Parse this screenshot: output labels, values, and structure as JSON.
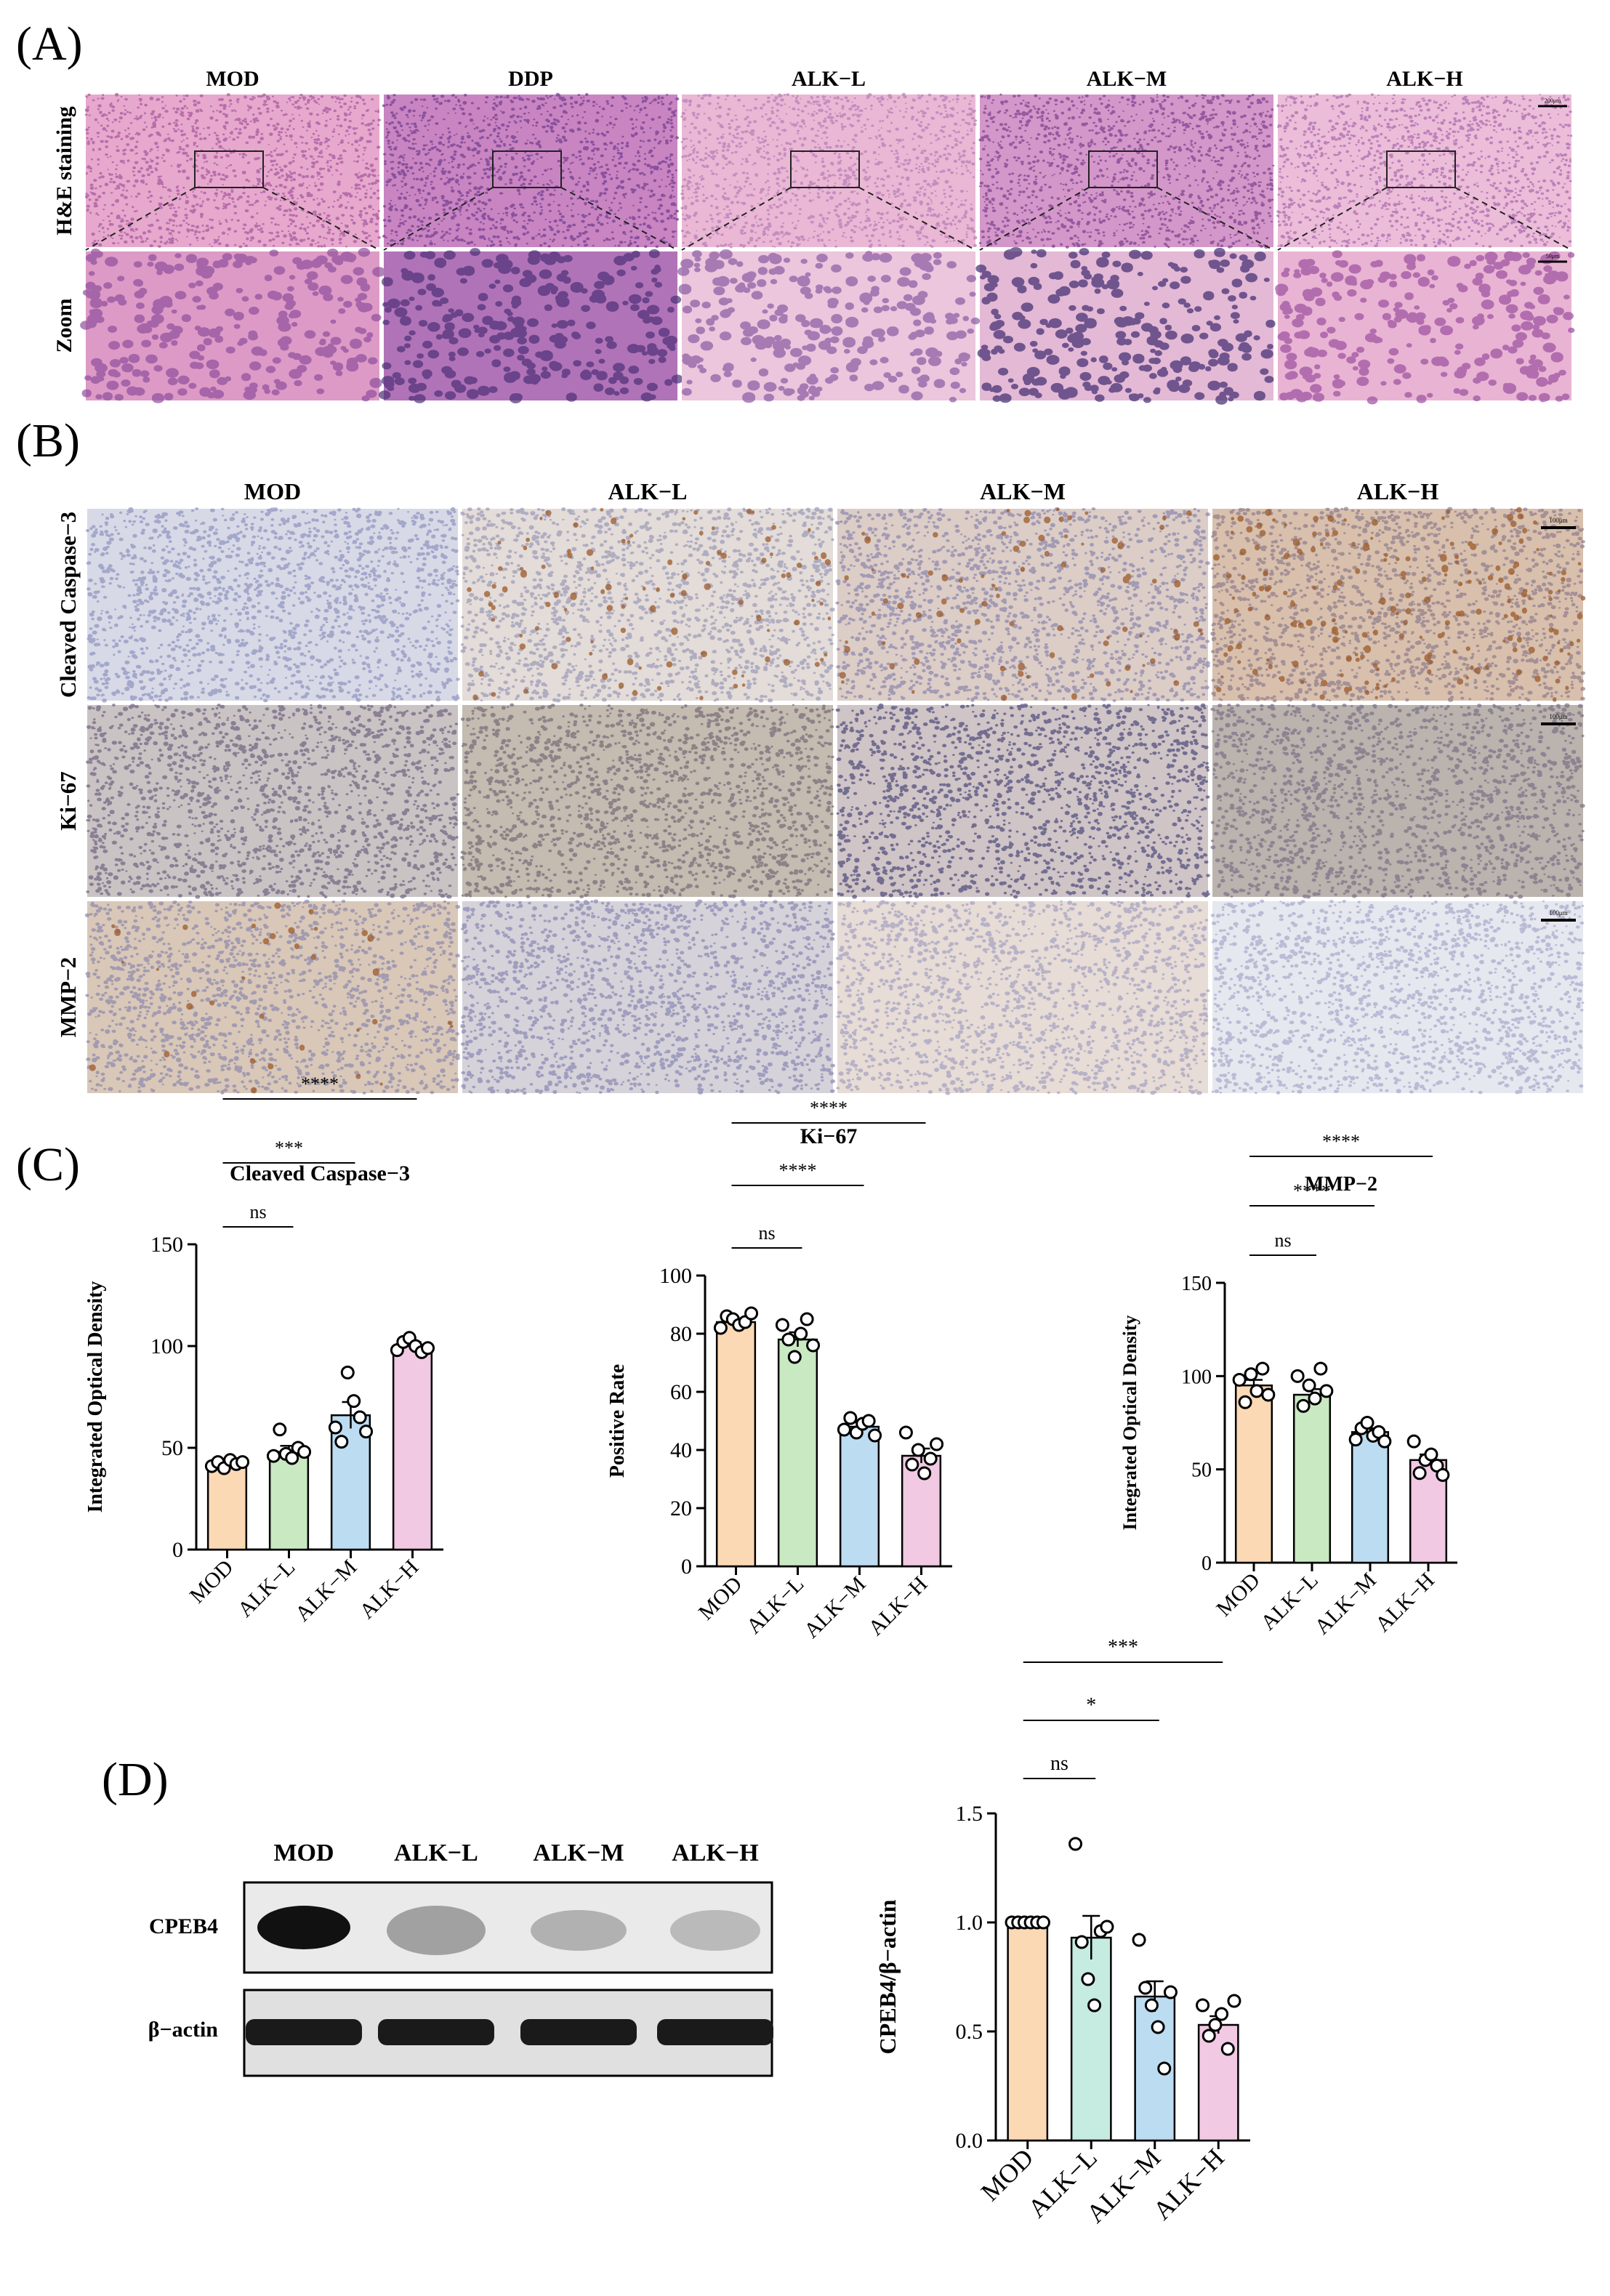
{
  "panels": {
    "A": "(A)",
    "B": "(B)",
    "C": "(C)",
    "D": "(D)"
  },
  "panel_a": {
    "columns": [
      "MOD",
      "DDP",
      "ALK−L",
      "ALK−M",
      "ALK−H"
    ],
    "rows": [
      "H&E staining",
      "Zoom"
    ],
    "scale_bars": [
      "200μm",
      "50μm"
    ],
    "tissue": {
      "low": [
        {
          "bg": "#e7a8cd",
          "dot": "#a4569c"
        },
        {
          "bg": "#c985c2",
          "dot": "#6f3a8d"
        },
        {
          "bg": "#eab8d5",
          "dot": "#b77bb5"
        },
        {
          "bg": "#d497c9",
          "dot": "#7a3f8f"
        },
        {
          "bg": "#ecbdd9",
          "dot": "#a968ad"
        }
      ],
      "zoom": [
        {
          "bg": "#dd9ac6",
          "dot": "#8f4e9c"
        },
        {
          "bg": "#b173b8",
          "dot": "#4c2f76"
        },
        {
          "bg": "#ebc6dd",
          "dot": "#8c5aa2"
        },
        {
          "bg": "#e3b9d6",
          "dot": "#3f2a6d"
        },
        {
          "bg": "#e9b4d3",
          "dot": "#9a4f9f"
        }
      ]
    }
  },
  "panel_b": {
    "columns": [
      "MOD",
      "ALK−L",
      "ALK−M",
      "ALK−H"
    ],
    "rows": [
      "Cleaved Caspase−3",
      "Ki−67",
      "MMP−2"
    ],
    "scale_bar": "100μm",
    "tissue": [
      [
        {
          "bg": "#d8d9e6",
          "dot": "#8d93bf",
          "brown": 0
        },
        {
          "bg": "#e3dcd8",
          "dot": "#9a98b8",
          "brown": 0.06
        },
        {
          "bg": "#dccdc7",
          "dot": "#8a86ad",
          "brown": 0.05
        },
        {
          "bg": "#d8c0ad",
          "dot": "#8f7c8a",
          "brown": 0.12
        }
      ],
      [
        {
          "bg": "#c9c3c4",
          "dot": "#6f6480",
          "brown": 0
        },
        {
          "bg": "#c4bbb1",
          "dot": "#766a75",
          "brown": 0
        },
        {
          "bg": "#cfc4c6",
          "dot": "#4c4a7a",
          "brown": 0
        },
        {
          "bg": "#bab3ae",
          "dot": "#7b7184",
          "brown": 0
        }
      ],
      [
        {
          "bg": "#d9c8b8",
          "dot": "#8b87ad",
          "brown": 0.02
        },
        {
          "bg": "#d6d2d9",
          "dot": "#8888b4",
          "brown": 0
        },
        {
          "bg": "#e7dcd6",
          "dot": "#a29fc0",
          "brown": 0
        },
        {
          "bg": "#e6e8ef",
          "dot": "#a6aacc",
          "brown": 0
        }
      ]
    ]
  },
  "charts_c": [
    {
      "title": "Cleaved Caspase−3",
      "ylabel": "Integrated Optical Density",
      "categories": [
        "MOD",
        "ALK−L",
        "ALK−M",
        "ALK−H"
      ],
      "means": [
        42,
        48,
        66,
        100
      ],
      "sem": [
        1.5,
        3,
        6.5,
        2
      ],
      "ylim": [
        0,
        150
      ],
      "yticks": [
        0,
        50,
        100,
        150
      ],
      "points": [
        [
          41,
          43,
          40,
          44,
          42,
          43
        ],
        [
          46,
          59,
          47,
          45,
          50,
          48
        ],
        [
          60,
          53,
          87,
          73,
          65,
          58
        ],
        [
          98,
          102,
          104,
          100,
          97,
          99
        ]
      ],
      "colors": [
        "#fcd9b5",
        "#c9e9c2",
        "#bcdcf2",
        "#f1c9e3"
      ],
      "significance": [
        {
          "label": "ns",
          "from": 0,
          "to": 1,
          "level": 0
        },
        {
          "label": "***",
          "from": 0,
          "to": 2,
          "level": 1
        },
        {
          "label": "****",
          "from": 0,
          "to": 3,
          "level": 2
        }
      ]
    },
    {
      "title": "Ki−67",
      "ylabel": "Positive Rate",
      "categories": [
        "MOD",
        "ALK−L",
        "ALK−M",
        "ALK−H"
      ],
      "means": [
        84,
        78,
        48,
        38
      ],
      "sem": [
        1,
        2.5,
        1.5,
        2.5
      ],
      "ylim": [
        0,
        100
      ],
      "yticks": [
        0,
        20,
        40,
        60,
        80,
        100
      ],
      "points": [
        [
          82,
          86,
          85,
          83,
          84,
          87
        ],
        [
          83,
          78,
          72,
          80,
          85,
          76
        ],
        [
          47,
          51,
          46,
          49,
          50,
          45
        ],
        [
          46,
          35,
          40,
          32,
          37,
          42
        ]
      ],
      "colors": [
        "#fcd9b5",
        "#c9e9c2",
        "#bcdcf2",
        "#f1c9e3"
      ],
      "significance": [
        {
          "label": "ns",
          "from": 0,
          "to": 1,
          "level": 0
        },
        {
          "label": "****",
          "from": 0,
          "to": 2,
          "level": 1
        },
        {
          "label": "****",
          "from": 0,
          "to": 3,
          "level": 2
        }
      ]
    },
    {
      "title": "MMP−2",
      "ylabel": "Integrated Optical Density",
      "categories": [
        "MOD",
        "ALK−L",
        "ALK−M",
        "ALK−H"
      ],
      "means": [
        95,
        90,
        70,
        55
      ],
      "sem": [
        3,
        3,
        2,
        3
      ],
      "ylim": [
        0,
        150
      ],
      "yticks": [
        0,
        50,
        100,
        150
      ],
      "points": [
        [
          98,
          86,
          101,
          92,
          104,
          90
        ],
        [
          100,
          84,
          95,
          88,
          104,
          92
        ],
        [
          66,
          72,
          75,
          68,
          70,
          65
        ],
        [
          65,
          48,
          55,
          58,
          52,
          47
        ]
      ],
      "colors": [
        "#fcd9b5",
        "#c9e9c2",
        "#bcdcf2",
        "#f1c9e3"
      ],
      "significance": [
        {
          "label": "ns",
          "from": 0,
          "to": 1,
          "level": 0
        },
        {
          "label": "****",
          "from": 0,
          "to": 2,
          "level": 1
        },
        {
          "label": "****",
          "from": 0,
          "to": 3,
          "level": 2
        }
      ]
    }
  ],
  "panel_d": {
    "lanes": [
      "MOD",
      "ALK−L",
      "ALK−M",
      "ALK−H"
    ],
    "blots": [
      "CPEB4",
      "β−actin"
    ],
    "chart": {
      "ylabel": "CPEB4/β−actin",
      "categories": [
        "MOD",
        "ALK−L",
        "ALK−M",
        "ALK−H"
      ],
      "means": [
        1.0,
        0.93,
        0.66,
        0.53
      ],
      "sem": [
        0,
        0.1,
        0.07,
        0.04
      ],
      "ylim": [
        0,
        1.5
      ],
      "yticks": [
        "0.0",
        "0.5",
        "1.0",
        "1.5"
      ],
      "points": [
        [
          1.0,
          1.0,
          1.0,
          1.0,
          1.0,
          1.0
        ],
        [
          1.36,
          0.91,
          0.74,
          0.62,
          0.96,
          0.98
        ],
        [
          0.92,
          0.7,
          0.62,
          0.52,
          0.33,
          0.68
        ],
        [
          0.62,
          0.48,
          0.53,
          0.58,
          0.42,
          0.64
        ]
      ],
      "colors": [
        "#fcd9b5",
        "#c6ebe1",
        "#bcdcf2",
        "#f1c9e3"
      ],
      "significance": [
        {
          "label": "ns",
          "from": 0,
          "to": 1,
          "level": 0
        },
        {
          "label": "*",
          "from": 0,
          "to": 2,
          "level": 1
        },
        {
          "label": "***",
          "from": 0,
          "to": 3,
          "level": 2
        }
      ]
    }
  }
}
